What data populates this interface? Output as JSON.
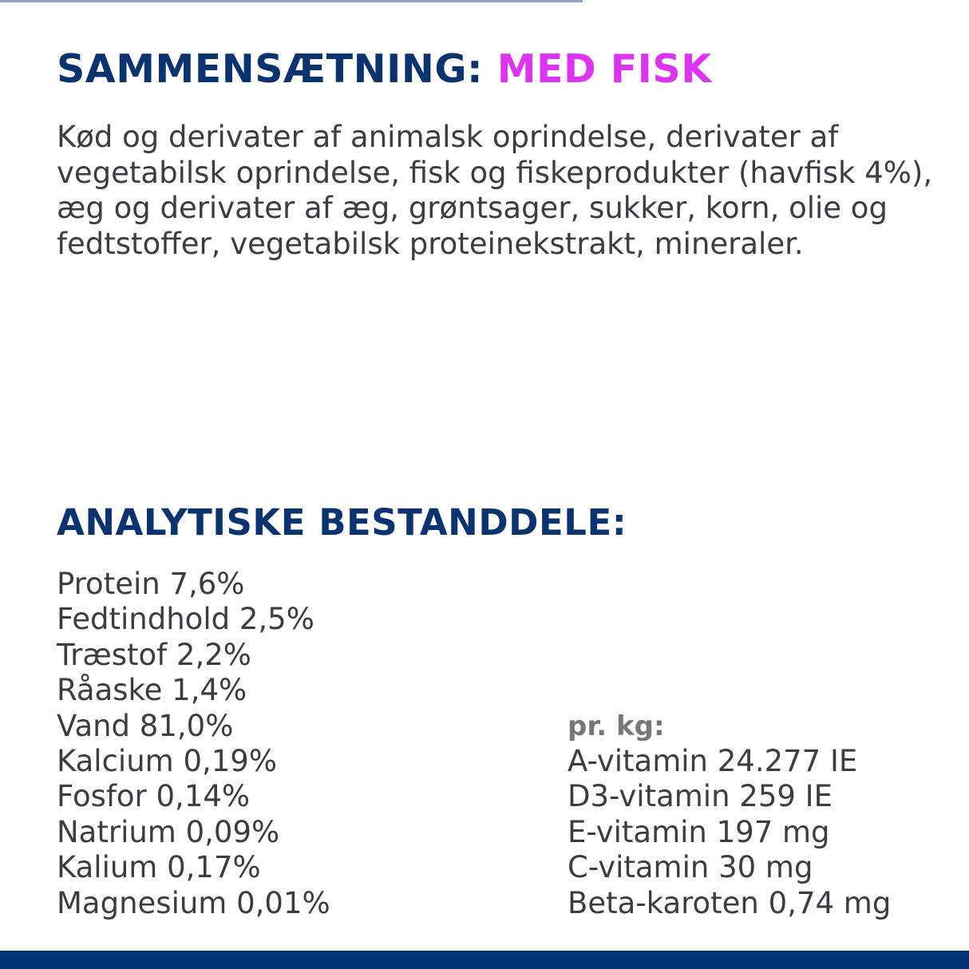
{
  "colors": {
    "heading_navy": "#0b3370",
    "accent_magenta": "#dd33f2",
    "body_text": "#3c3c42",
    "subheading_gray": "#77777b",
    "bottom_bar": "#003373",
    "top_line": "#8fa4c2"
  },
  "composition": {
    "title": "SAMMENSÆTNING:",
    "title_accent": "MED FISK",
    "text": "Kød og derivater af animalsk oprindelse, derivater af vegetabilsk oprindelse, fisk og fiskeprodukter (havfisk 4%), æg og derivater af æg, grøntsager, sukker, korn, olie og fedtstoffer, vegetabilsk proteinekstrakt, mineraler."
  },
  "analysis": {
    "title": "ANALYTISKE BESTANDDELE:",
    "items": [
      "Protein 7,6%",
      "Fedtindhold 2,5%",
      "Træstof 2,2%",
      "Råaske 1,4%",
      "Vand 81,0%",
      "Kalcium 0,19%",
      "Fosfor 0,14%",
      "Natrium 0,09%",
      "Kalium 0,17%",
      "Magnesium 0,01%"
    ],
    "per_kg": {
      "label": "pr. kg:",
      "items": [
        "A-vitamin 24.277 IE",
        "D3-vitamin 259 IE",
        "E-vitamin 197 mg",
        "C-vitamin 30 mg",
        "Beta-karoten 0,74 mg"
      ]
    }
  }
}
